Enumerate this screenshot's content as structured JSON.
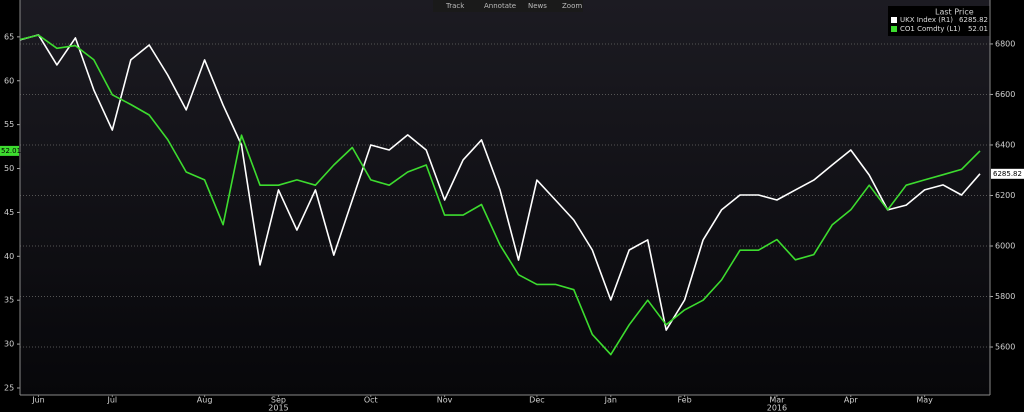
{
  "toolbar": [
    "Track",
    "Annotate",
    "News",
    "Zoom"
  ],
  "chart_data": {
    "type": "line",
    "legend_title": "Last Price",
    "legend": "top-right",
    "categories": [
      null,
      "Jun",
      null,
      null,
      null,
      "Jul",
      null,
      null,
      null,
      null,
      "Aug",
      null,
      null,
      null,
      "Sep",
      null,
      null,
      null,
      null,
      "Oct",
      null,
      null,
      null,
      "Nov",
      null,
      null,
      null,
      null,
      "Dec",
      null,
      null,
      null,
      "Jan",
      null,
      null,
      null,
      "Feb",
      null,
      null,
      null,
      null,
      "Mar",
      null,
      null,
      null,
      "Apr",
      null,
      null,
      null,
      "May",
      null,
      null,
      null
    ],
    "year_categories": [
      null,
      null,
      null,
      null,
      null,
      null,
      null,
      null,
      null,
      null,
      null,
      null,
      null,
      null,
      "2015",
      null,
      null,
      null,
      null,
      null,
      null,
      null,
      null,
      null,
      null,
      null,
      null,
      null,
      null,
      null,
      null,
      null,
      null,
      null,
      null,
      null,
      null,
      null,
      null,
      null,
      null,
      "2016",
      null,
      null,
      null,
      null,
      null,
      null,
      null,
      null,
      null,
      null,
      null
    ],
    "series": [
      {
        "name": "UKX Index  (R1)",
        "color": "#ffffff",
        "axis": "y2",
        "values": [
          6816,
          6836,
          6717,
          6824,
          6618,
          6459,
          6737,
          6796,
          6677,
          6539,
          6737,
          6558,
          6400,
          5925,
          6222,
          6063,
          6222,
          5964,
          6182,
          6400,
          6380,
          6440,
          6380,
          6182,
          6341,
          6420,
          6222,
          5944,
          6261,
          6182,
          6103,
          5984,
          5786,
          5984,
          6024,
          5667,
          5786,
          6024,
          6143,
          6202,
          6202,
          6182,
          6222,
          6261,
          6321,
          6380,
          6281,
          6143,
          6162,
          6222,
          6242,
          6202,
          6285.82
        ]
      },
      {
        "name": "CO1 Comdty  (L1)",
        "color": "#3ddc2f",
        "values": [
          64.7,
          65.2,
          63.7,
          64,
          62.4,
          58.4,
          57.3,
          56.1,
          53.3,
          49.6,
          48.7,
          43.6,
          53.8,
          48.1,
          48.1,
          48.7,
          48.1,
          50.4,
          52.4,
          48.7,
          48.1,
          49.6,
          50.4,
          44.7,
          44.7,
          45.9,
          41.3,
          37.9,
          36.8,
          36.8,
          36.2,
          31.1,
          28.8,
          32.2,
          35,
          32.2,
          33.9,
          35,
          37.3,
          40.7,
          40.7,
          41.9,
          39.6,
          40.2,
          43.6,
          45.3,
          48.1,
          45.3,
          48.1,
          48.7,
          49.3,
          49.9,
          52.01
        ]
      }
    ],
    "ylim": [
      24.2,
      69.2
    ],
    "yticks": [
      25,
      30,
      35,
      40,
      45,
      50,
      55,
      60,
      65
    ],
    "y2lim": [
      5410,
      6974
    ],
    "y2ticks": [
      5600,
      5800,
      6000,
      6200,
      6400,
      6600,
      6800
    ],
    "grid": true
  }
}
